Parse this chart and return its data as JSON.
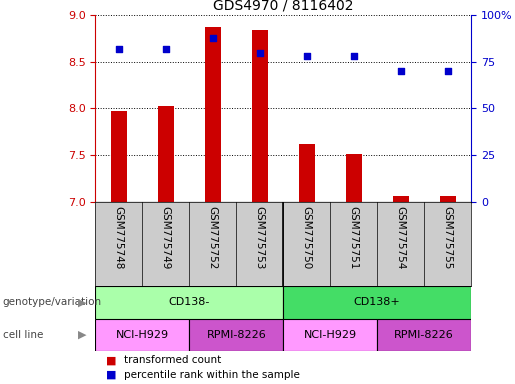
{
  "title": "GDS4970 / 8116402",
  "samples": [
    "GSM775748",
    "GSM775749",
    "GSM775752",
    "GSM775753",
    "GSM775750",
    "GSM775751",
    "GSM775754",
    "GSM775755"
  ],
  "transformed_count": [
    7.97,
    8.03,
    8.88,
    8.84,
    7.62,
    7.51,
    7.06,
    7.06
  ],
  "percentile_rank": [
    82,
    82,
    88,
    80,
    78,
    78,
    70,
    70
  ],
  "ylim_left": [
    7.0,
    9.0
  ],
  "ylim_right": [
    0,
    100
  ],
  "yticks_left": [
    7.0,
    7.5,
    8.0,
    8.5,
    9.0
  ],
  "yticks_right": [
    0,
    25,
    50,
    75,
    100
  ],
  "yticklabels_right": [
    "0",
    "25",
    "50",
    "75",
    "100%"
  ],
  "bar_color": "#cc0000",
  "scatter_color": "#0000cc",
  "groups": [
    {
      "label": "CD138-",
      "start": 0,
      "end": 4,
      "color": "#aaffaa"
    },
    {
      "label": "CD138+",
      "start": 4,
      "end": 8,
      "color": "#44dd66"
    }
  ],
  "cell_lines": [
    {
      "label": "NCI-H929",
      "start": 0,
      "end": 2,
      "color": "#ff99ff"
    },
    {
      "label": "RPMI-8226",
      "start": 2,
      "end": 4,
      "color": "#cc55cc"
    },
    {
      "label": "NCI-H929",
      "start": 4,
      "end": 6,
      "color": "#ff99ff"
    },
    {
      "label": "RPMI-8226",
      "start": 6,
      "end": 8,
      "color": "#cc55cc"
    }
  ],
  "legend_items": [
    {
      "label": "transformed count",
      "color": "#cc0000"
    },
    {
      "label": "percentile rank within the sample",
      "color": "#0000cc"
    }
  ],
  "left_label_text": [
    "genotype/variation",
    "cell line"
  ],
  "bar_width": 0.35,
  "bg_color": "#ffffff",
  "tick_color_left": "#cc0000",
  "tick_color_right": "#0000cc",
  "grid_color": "#000000",
  "sample_label_bg": "#cccccc",
  "separator_color": "#000000"
}
